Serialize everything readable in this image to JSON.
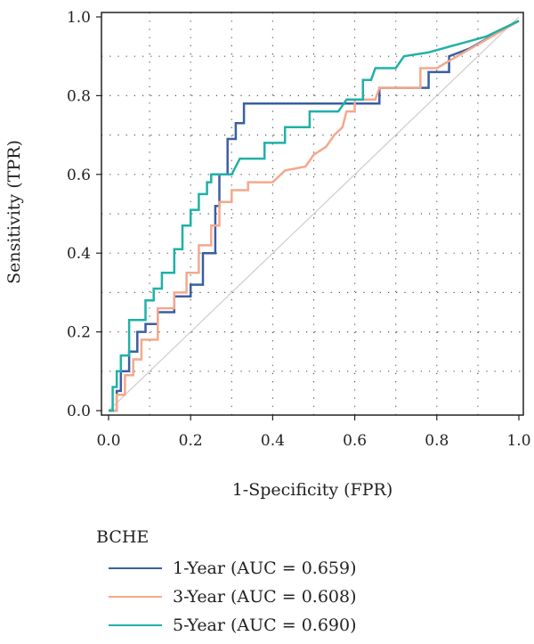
{
  "chart_data": {
    "type": "line",
    "xlabel": "1-Specificity (FPR)",
    "ylabel": "Sensitivity (TPR)",
    "xlim": [
      0,
      1
    ],
    "ylim": [
      0,
      1
    ],
    "x_ticks": [
      "0.0",
      "0.2",
      "0.4",
      "0.6",
      "0.8",
      "1.0"
    ],
    "y_ticks": [
      "0.0",
      "0.2",
      "0.4",
      "0.6",
      "0.8",
      "1.0"
    ],
    "grid": "dotted",
    "diagonal_color": "#d0d0d0",
    "legend_title": "BCHE",
    "legend_position": "bottom-left",
    "series": [
      {
        "name": "1-Year (AUC = 0.659)",
        "color": "#3a5fa0",
        "points": [
          [
            0,
            0
          ],
          [
            0.02,
            0
          ],
          [
            0.02,
            0.05
          ],
          [
            0.03,
            0.05
          ],
          [
            0.03,
            0.1
          ],
          [
            0.05,
            0.1
          ],
          [
            0.05,
            0.15
          ],
          [
            0.07,
            0.15
          ],
          [
            0.07,
            0.2
          ],
          [
            0.09,
            0.2
          ],
          [
            0.09,
            0.22
          ],
          [
            0.12,
            0.22
          ],
          [
            0.12,
            0.25
          ],
          [
            0.16,
            0.25
          ],
          [
            0.16,
            0.29
          ],
          [
            0.2,
            0.29
          ],
          [
            0.2,
            0.32
          ],
          [
            0.23,
            0.32
          ],
          [
            0.23,
            0.4
          ],
          [
            0.26,
            0.4
          ],
          [
            0.26,
            0.52
          ],
          [
            0.27,
            0.52
          ],
          [
            0.27,
            0.6
          ],
          [
            0.29,
            0.6
          ],
          [
            0.29,
            0.69
          ],
          [
            0.31,
            0.69
          ],
          [
            0.31,
            0.73
          ],
          [
            0.33,
            0.73
          ],
          [
            0.33,
            0.78
          ],
          [
            0.59,
            0.78
          ],
          [
            0.66,
            0.78
          ],
          [
            0.66,
            0.82
          ],
          [
            0.78,
            0.82
          ],
          [
            0.78,
            0.86
          ],
          [
            0.83,
            0.86
          ],
          [
            0.83,
            0.9
          ],
          [
            0.88,
            0.92
          ],
          [
            1,
            0.99
          ]
        ]
      },
      {
        "name": "3-Year (AUC = 0.608)",
        "color": "#f4a88d",
        "points": [
          [
            0,
            0
          ],
          [
            0.02,
            0
          ],
          [
            0.02,
            0.04
          ],
          [
            0.04,
            0.04
          ],
          [
            0.04,
            0.09
          ],
          [
            0.06,
            0.09
          ],
          [
            0.06,
            0.13
          ],
          [
            0.08,
            0.13
          ],
          [
            0.08,
            0.18
          ],
          [
            0.12,
            0.18
          ],
          [
            0.12,
            0.26
          ],
          [
            0.16,
            0.26
          ],
          [
            0.16,
            0.3
          ],
          [
            0.19,
            0.3
          ],
          [
            0.19,
            0.35
          ],
          [
            0.22,
            0.35
          ],
          [
            0.22,
            0.42
          ],
          [
            0.25,
            0.42
          ],
          [
            0.25,
            0.47
          ],
          [
            0.27,
            0.47
          ],
          [
            0.27,
            0.53
          ],
          [
            0.3,
            0.53
          ],
          [
            0.3,
            0.56
          ],
          [
            0.34,
            0.56
          ],
          [
            0.34,
            0.58
          ],
          [
            0.4,
            0.58
          ],
          [
            0.43,
            0.61
          ],
          [
            0.48,
            0.62
          ],
          [
            0.5,
            0.65
          ],
          [
            0.53,
            0.67
          ],
          [
            0.55,
            0.7
          ],
          [
            0.57,
            0.72
          ],
          [
            0.58,
            0.76
          ],
          [
            0.6,
            0.76
          ],
          [
            0.6,
            0.79
          ],
          [
            0.65,
            0.79
          ],
          [
            0.66,
            0.82
          ],
          [
            0.76,
            0.82
          ],
          [
            0.76,
            0.87
          ],
          [
            0.8,
            0.87
          ],
          [
            0.85,
            0.9
          ],
          [
            0.9,
            0.93
          ],
          [
            1,
            0.99
          ]
        ]
      },
      {
        "name": "5-Year (AUC = 0.690)",
        "color": "#1fb1a6",
        "points": [
          [
            0,
            0
          ],
          [
            0.01,
            0
          ],
          [
            0.01,
            0.06
          ],
          [
            0.02,
            0.06
          ],
          [
            0.02,
            0.1
          ],
          [
            0.03,
            0.1
          ],
          [
            0.03,
            0.14
          ],
          [
            0.05,
            0.14
          ],
          [
            0.05,
            0.23
          ],
          [
            0.09,
            0.23
          ],
          [
            0.09,
            0.28
          ],
          [
            0.11,
            0.28
          ],
          [
            0.11,
            0.31
          ],
          [
            0.13,
            0.31
          ],
          [
            0.13,
            0.35
          ],
          [
            0.16,
            0.35
          ],
          [
            0.16,
            0.41
          ],
          [
            0.18,
            0.41
          ],
          [
            0.18,
            0.47
          ],
          [
            0.2,
            0.47
          ],
          [
            0.2,
            0.51
          ],
          [
            0.22,
            0.51
          ],
          [
            0.22,
            0.55
          ],
          [
            0.24,
            0.55
          ],
          [
            0.24,
            0.58
          ],
          [
            0.25,
            0.58
          ],
          [
            0.25,
            0.6
          ],
          [
            0.3,
            0.6
          ],
          [
            0.32,
            0.64
          ],
          [
            0.38,
            0.64
          ],
          [
            0.38,
            0.68
          ],
          [
            0.43,
            0.68
          ],
          [
            0.43,
            0.72
          ],
          [
            0.49,
            0.72
          ],
          [
            0.49,
            0.76
          ],
          [
            0.56,
            0.76
          ],
          [
            0.58,
            0.79
          ],
          [
            0.62,
            0.79
          ],
          [
            0.62,
            0.84
          ],
          [
            0.64,
            0.84
          ],
          [
            0.65,
            0.87
          ],
          [
            0.7,
            0.87
          ],
          [
            0.72,
            0.9
          ],
          [
            0.78,
            0.91
          ],
          [
            0.85,
            0.93
          ],
          [
            0.92,
            0.95
          ],
          [
            1,
            0.99
          ]
        ]
      }
    ]
  }
}
